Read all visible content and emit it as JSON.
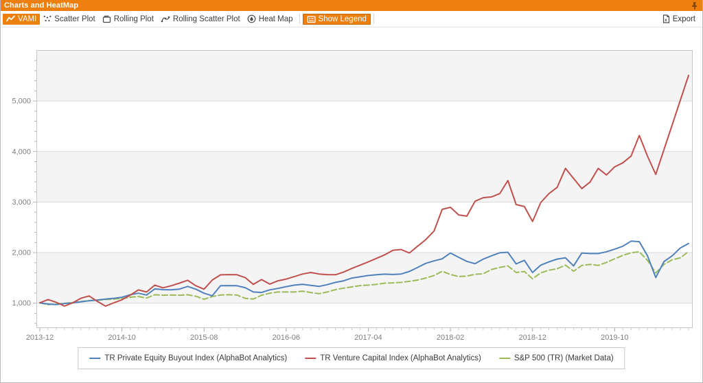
{
  "window": {
    "title": "Charts and HeatMap"
  },
  "toolbar": {
    "tabs": [
      {
        "label": "VAMI",
        "icon": "line-chart-icon",
        "active": true
      },
      {
        "label": "Scatter Plot",
        "icon": "scatter-icon",
        "active": false
      },
      {
        "label": "Rolling Plot",
        "icon": "rolling-plot-icon",
        "active": false
      },
      {
        "label": "Rolling Scatter Plot",
        "icon": "rolling-scatter-icon",
        "active": false
      },
      {
        "label": "Heat Map",
        "icon": "heatmap-icon",
        "active": false
      }
    ],
    "show_legend_label": "Show Legend",
    "export_label": "Export"
  },
  "colors": {
    "accent_orange": "#EC7F0E",
    "band_gray": "#f4f4f4",
    "gridline": "#dadada",
    "plot_border": "#c6c6c6",
    "axis_text": "#7f7f7f"
  },
  "chart_data": {
    "type": "line",
    "title": "",
    "xlabel": "",
    "ylabel": "",
    "x_unit": "month",
    "x_start": "2013-12",
    "x_end": "2020-07",
    "n_points": 80,
    "x_tick_every": 10,
    "x_tick_labels": [
      "2013-12",
      "2014-10",
      "2015-08",
      "2016-06",
      "2017-04",
      "2018-02",
      "2018-12",
      "2019-10"
    ],
    "y_tick_values": [
      1000,
      2000,
      3000,
      4000,
      5000
    ],
    "y_tick_labels": [
      "1,000",
      "2,000",
      "3,000",
      "4,000",
      "5,000"
    ],
    "y_minor_step": 200,
    "ylim": [
      500,
      6000
    ],
    "grid": "horizontal",
    "alternating_bands": true,
    "legend_position": "bottom-center",
    "draw_order": [
      2,
      0,
      1
    ],
    "series": [
      {
        "name": "TR Private Equity Buyout Index (AlphaBot Analytics)",
        "color": "#4F81BD",
        "style": "solid",
        "values": [
          1000,
          975,
          965,
          985,
          1000,
          1020,
          1040,
          1055,
          1075,
          1090,
          1110,
          1160,
          1190,
          1155,
          1275,
          1260,
          1258,
          1272,
          1325,
          1270,
          1190,
          1140,
          1338,
          1340,
          1338,
          1300,
          1215,
          1205,
          1257,
          1285,
          1320,
          1350,
          1365,
          1345,
          1325,
          1360,
          1405,
          1435,
          1490,
          1515,
          1540,
          1555,
          1568,
          1560,
          1570,
          1620,
          1700,
          1780,
          1830,
          1870,
          1985,
          1900,
          1820,
          1775,
          1865,
          1930,
          1990,
          2000,
          1770,
          1840,
          1600,
          1745,
          1810,
          1865,
          1890,
          1730,
          1985,
          1975,
          1975,
          2010,
          2060,
          2120,
          2220,
          2210,
          1930,
          1500,
          1815,
          1930,
          2085,
          2175
        ]
      },
      {
        "name": "TR Venture Capital Index (AlphaBot Analytics)",
        "color": "#C0504D",
        "style": "solid",
        "values": [
          1000,
          1065,
          1010,
          935,
          1000,
          1090,
          1135,
          1030,
          935,
          1000,
          1060,
          1150,
          1255,
          1215,
          1350,
          1297,
          1338,
          1390,
          1446,
          1338,
          1270,
          1450,
          1554,
          1558,
          1555,
          1500,
          1365,
          1460,
          1370,
          1435,
          1470,
          1520,
          1570,
          1600,
          1570,
          1558,
          1555,
          1610,
          1680,
          1745,
          1810,
          1880,
          1950,
          2040,
          2055,
          1985,
          2120,
          2250,
          2420,
          2850,
          2890,
          2740,
          2715,
          3010,
          3080,
          3095,
          3160,
          3420,
          2945,
          2905,
          2610,
          2985,
          3160,
          3285,
          3660,
          3460,
          3260,
          3390,
          3660,
          3530,
          3690,
          3770,
          3905,
          4310,
          3900,
          3540,
          4030,
          4520,
          5010,
          5500
        ]
      },
      {
        "name": "S&P 500 (TR) (Market Data)",
        "color": "#9BBB59",
        "style": "dashed",
        "values": [
          1000,
          965,
          975,
          990,
          1005,
          1025,
          1045,
          1050,
          1065,
          1075,
          1085,
          1110,
          1125,
          1095,
          1160,
          1150,
          1155,
          1150,
          1160,
          1130,
          1070,
          1125,
          1155,
          1160,
          1155,
          1090,
          1075,
          1150,
          1190,
          1215,
          1215,
          1215,
          1230,
          1205,
          1180,
          1215,
          1260,
          1290,
          1315,
          1340,
          1350,
          1365,
          1390,
          1395,
          1405,
          1425,
          1450,
          1490,
          1540,
          1625,
          1560,
          1520,
          1530,
          1565,
          1575,
          1660,
          1700,
          1730,
          1600,
          1620,
          1475,
          1595,
          1645,
          1675,
          1745,
          1625,
          1740,
          1760,
          1740,
          1800,
          1870,
          1940,
          1990,
          2010,
          1840,
          1590,
          1760,
          1850,
          1890,
          2015
        ]
      }
    ]
  }
}
